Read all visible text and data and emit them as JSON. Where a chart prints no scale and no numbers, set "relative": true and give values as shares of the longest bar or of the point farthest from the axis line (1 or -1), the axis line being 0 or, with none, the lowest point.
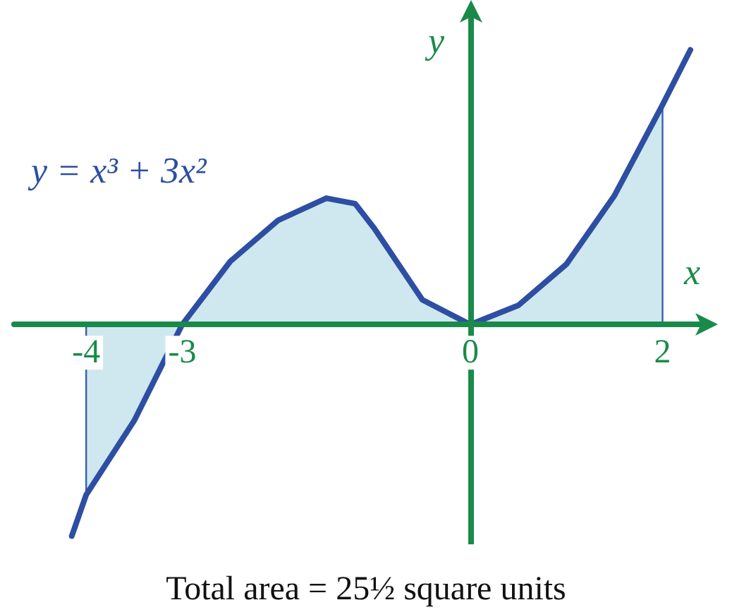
{
  "chart_data": {
    "type": "line",
    "relative": true,
    "xlabel": "x",
    "ylabel": "y",
    "xlim": [
      -4.75,
      2.4
    ],
    "xticks": [
      -4,
      -3,
      0,
      2
    ],
    "tick_labels": "x",
    "grid": false,
    "marker": "none",
    "annotations": [
      "y = x³ + 3x²",
      "Total area = 25½ square units"
    ],
    "ref_lines": [
      {
        "axis": "x",
        "value": 0,
        "color": "#1a8a4a"
      }
    ],
    "series": [
      {
        "type": "area",
        "color": "#cfe8ef",
        "x": [
          -4,
          -4,
          -3.5,
          -3,
          -2.5,
          -2,
          -1.5,
          -1.2,
          -1,
          -0.5,
          0,
          0.5,
          1,
          1.5,
          2,
          2
        ],
        "values": [
          0,
          -0.62,
          -0.35,
          0,
          0.23,
          0.38,
          0.46,
          0.44,
          0.35,
          0.09,
          0,
          0.07,
          0.22,
          0.47,
          0.8,
          0
        ]
      },
      {
        "color": "#2e4ea3",
        "x": [
          -4.15,
          -4,
          -3.5,
          -3,
          -2.5,
          -2,
          -1.5,
          -1.2,
          -1,
          -0.5,
          0,
          0.5,
          1,
          1.5,
          2,
          2.29
        ],
        "values": [
          -0.77,
          -0.62,
          -0.35,
          0,
          0.23,
          0.38,
          0.46,
          0.44,
          0.35,
          0.09,
          0,
          0.07,
          0.22,
          0.47,
          0.8,
          1
        ]
      }
    ]
  }
}
